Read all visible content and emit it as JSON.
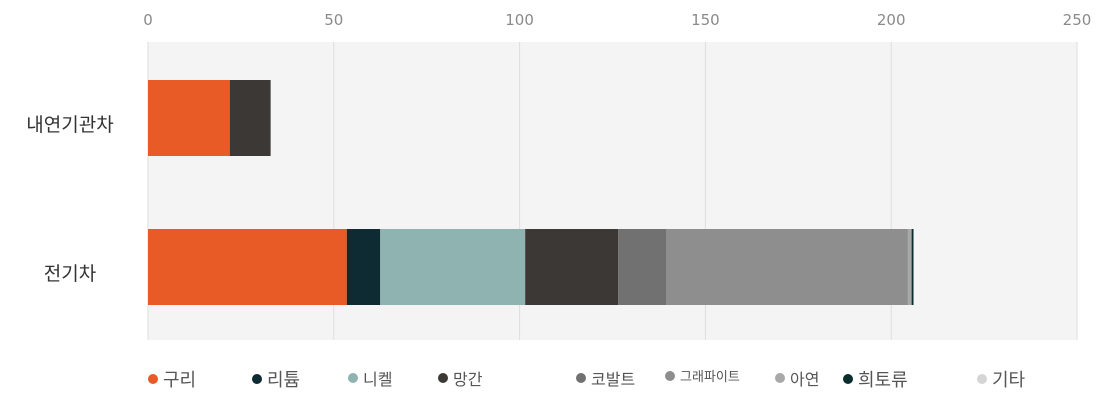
{
  "chart_data": {
    "type": "bar",
    "orientation": "horizontal",
    "stacked": true,
    "title": "",
    "xlabel": "",
    "ylabel": "",
    "xlim": [
      0,
      250
    ],
    "x_ticks": [
      "0",
      "50",
      "100",
      "150",
      "200",
      "250"
    ],
    "categories": [
      "내연기관차",
      "전기차"
    ],
    "grid": true,
    "legend_position": "bottom",
    "series": [
      {
        "name": "구리",
        "color": "#e85a26",
        "values": [
          22,
          53.5
        ]
      },
      {
        "name": "리튬",
        "color": "#0e2a33",
        "values": [
          0,
          9
        ]
      },
      {
        "name": "니켈",
        "color": "#8fb3b0",
        "values": [
          0,
          39
        ]
      },
      {
        "name": "망간",
        "color": "#3b3835",
        "values": [
          11,
          25
        ]
      },
      {
        "name": "코발트",
        "color": "#717171",
        "values": [
          0,
          13
        ]
      },
      {
        "name": "그래파이트",
        "color": "#8e8e8e",
        "values": [
          0,
          65
        ]
      },
      {
        "name": "아연",
        "color": "#a8a8a8",
        "values": [
          0,
          1
        ]
      },
      {
        "name": "희토류",
        "color": "#0c2d2d",
        "values": [
          0,
          0.5
        ]
      },
      {
        "name": "기타",
        "color": "#d5d5d5",
        "values": [
          0,
          0
        ]
      }
    ]
  }
}
